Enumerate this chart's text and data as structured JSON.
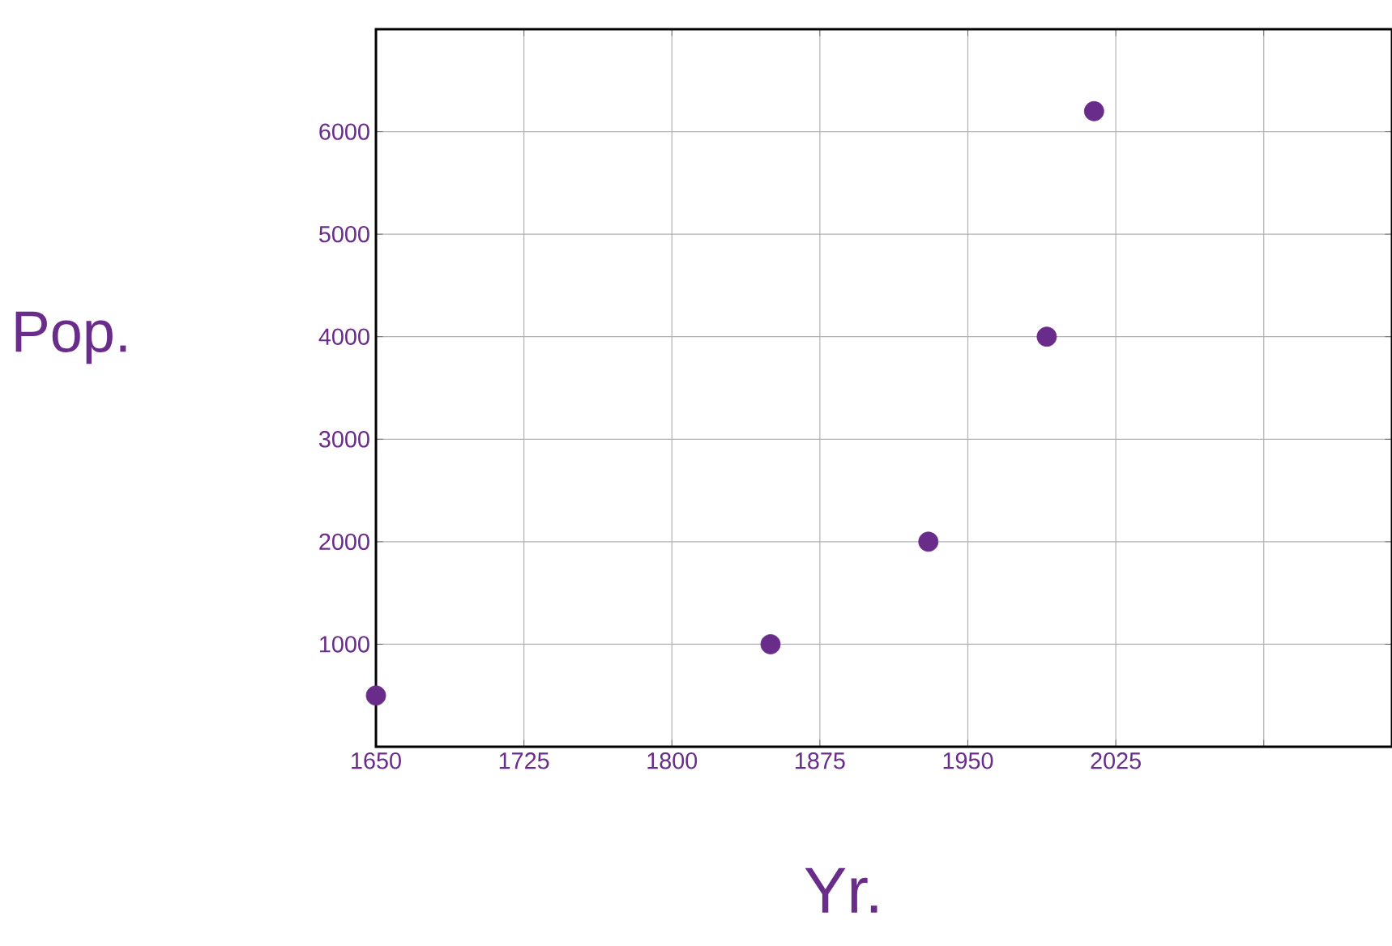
{
  "chart_data": {
    "type": "scatter",
    "xlabel": "Yr.",
    "ylabel": "Pop.",
    "x": [
      1650,
      1850,
      1930,
      1990,
      2014
    ],
    "values": [
      500,
      1000,
      2000,
      4000,
      6200
    ],
    "color": "#6a2c8a",
    "grid": true,
    "xlim": [
      1650,
      2165
    ],
    "ylim": [
      0,
      7000
    ],
    "xticks": [
      1650,
      1725,
      1800,
      1875,
      1950,
      2025,
      {
        "value": 2100,
        "label": null
      }
    ],
    "yticks": [
      {
        "value": 0,
        "label": null
      },
      1000,
      2000,
      3000,
      4000,
      5000,
      6000
    ]
  }
}
